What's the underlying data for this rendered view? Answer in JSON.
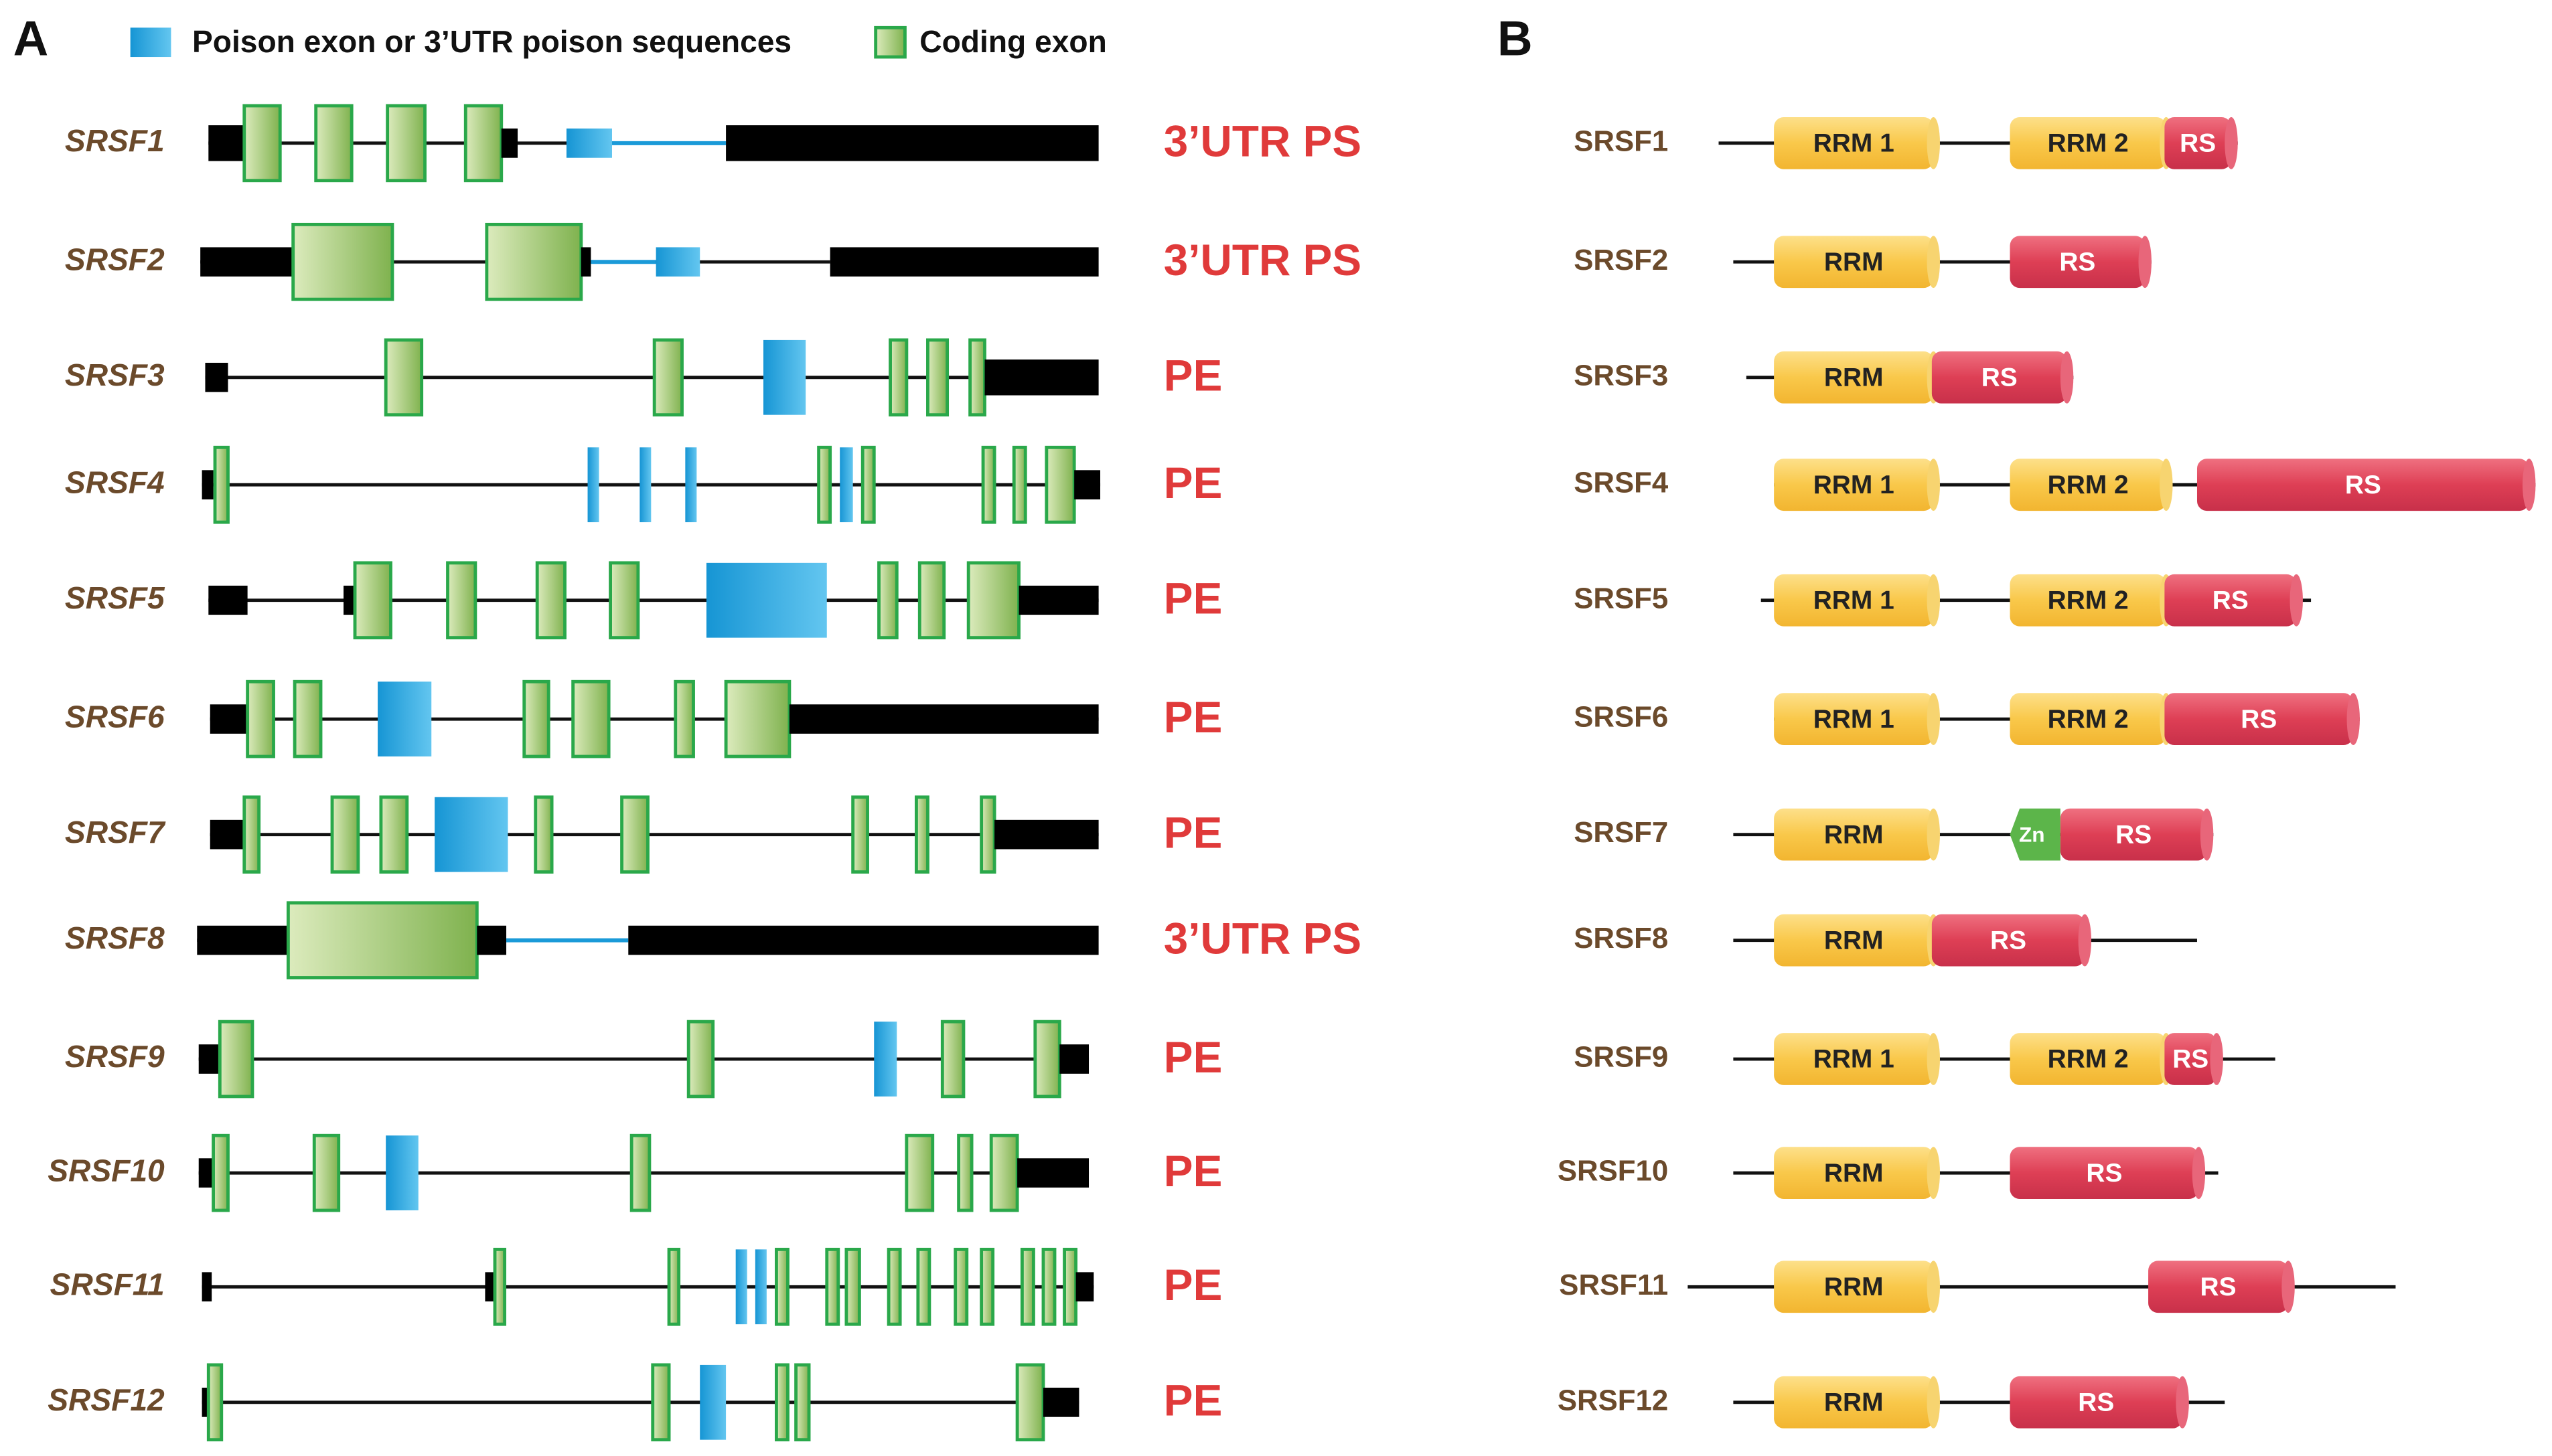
{
  "panel_a": {
    "label": "A",
    "legend": [
      "Poison exon or 3’UTR poison sequences",
      "Coding exon"
    ],
    "genes": [
      {
        "name": "SRSF1",
        "event": "3’UTR PS"
      },
      {
        "name": "SRSF2",
        "event": "3’UTR PS"
      },
      {
        "name": "SRSF3",
        "event": "PE"
      },
      {
        "name": "SRSF4",
        "event": "PE"
      },
      {
        "name": "SRSF5",
        "event": "PE"
      },
      {
        "name": "SRSF6",
        "event": "PE"
      },
      {
        "name": "SRSF7",
        "event": "PE"
      },
      {
        "name": "SRSF8",
        "event": "3’UTR PS"
      },
      {
        "name": "SRSF9",
        "event": "PE"
      },
      {
        "name": "SRSF10",
        "event": "PE"
      },
      {
        "name": "SRSF11",
        "event": "PE"
      },
      {
        "name": "SRSF12",
        "event": "PE"
      }
    ]
  },
  "panel_b": {
    "label": "B",
    "proteins": [
      {
        "name": "SRSF1",
        "domains": [
          "RRM 1",
          "RRM 2",
          "RS"
        ]
      },
      {
        "name": "SRSF2",
        "domains": [
          "RRM",
          "RS"
        ]
      },
      {
        "name": "SRSF3",
        "domains": [
          "RRM",
          "RS"
        ]
      },
      {
        "name": "SRSF4",
        "domains": [
          "RRM 1",
          "RRM 2",
          "RS"
        ]
      },
      {
        "name": "SRSF5",
        "domains": [
          "RRM 1",
          "RRM 2",
          "RS"
        ]
      },
      {
        "name": "SRSF6",
        "domains": [
          "RRM 1",
          "RRM 2",
          "RS"
        ]
      },
      {
        "name": "SRSF7",
        "domains": [
          "RRM",
          "Zn",
          "RS"
        ]
      },
      {
        "name": "SRSF8",
        "domains": [
          "RRM",
          "RS"
        ]
      },
      {
        "name": "SRSF9",
        "domains": [
          "RRM 1",
          "RRM 2",
          "RS"
        ]
      },
      {
        "name": "SRSF10",
        "domains": [
          "RRM",
          "RS"
        ]
      },
      {
        "name": "SRSF11",
        "domains": [
          "RRM",
          "RS"
        ]
      },
      {
        "name": "SRSF12",
        "domains": [
          "RRM",
          "RS"
        ]
      }
    ]
  }
}
